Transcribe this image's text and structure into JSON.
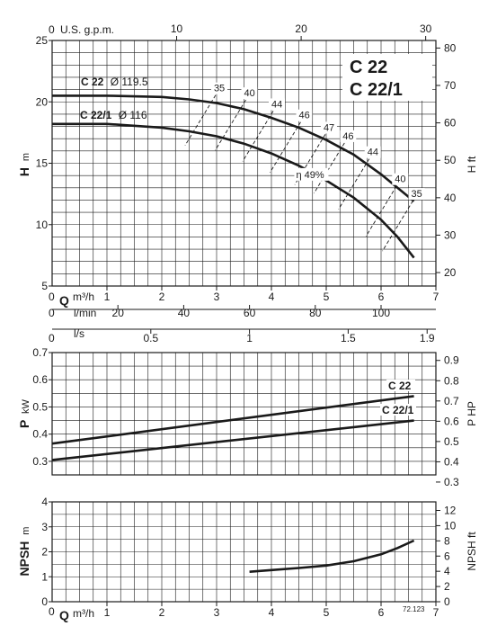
{
  "chart_data": [
    {
      "type": "line",
      "name": "head",
      "title": "C 22\nC 22/1",
      "title_lines": [
        "C 22",
        "C 22/1"
      ],
      "ylabel": "H m",
      "ylabel_parts": [
        "H",
        "m"
      ],
      "y2label": "H ft",
      "xlabel": "Q m³/h",
      "xlabel_parts": [
        "Q",
        "m³/h"
      ],
      "xlim": [
        0,
        7
      ],
      "ylim": [
        5,
        25
      ],
      "x_ticks": [
        1,
        2,
        3,
        4,
        5,
        6,
        7
      ],
      "x_ticks_labels": [
        "1",
        "2",
        "3",
        "4",
        "5",
        "6",
        "7"
      ],
      "x_zero_label": "0",
      "y_ticks": [
        5,
        10,
        15,
        20,
        25
      ],
      "y_ticks_labels": [
        "5",
        "10",
        "15",
        "20",
        "25"
      ],
      "y2_ticks": [
        20,
        30,
        40,
        50,
        60,
        70,
        80
      ],
      "y2_ticks_labels": [
        "20",
        "30",
        "40",
        "50",
        "60",
        "70",
        "80"
      ],
      "top_axis": {
        "label": "U.S. g.p.m.",
        "zero_label": "0",
        "ticks": [
          10,
          20,
          30
        ],
        "ticks_labels": [
          "10",
          "20",
          "30"
        ]
      },
      "lmin_axis": {
        "label": "l/min",
        "zero_label": "0",
        "ticks": [
          20,
          40,
          60,
          80,
          100
        ],
        "ticks_labels": [
          "20",
          "40",
          "60",
          "80",
          "100"
        ]
      },
      "ls_axis": {
        "label": "l/s",
        "zero_label": "0",
        "ticks": [
          0.5,
          1,
          1.5,
          1.9
        ],
        "ticks_labels": [
          "0.5",
          "1",
          "1.5",
          "1.9"
        ]
      },
      "grid": true,
      "series": [
        {
          "name": "C 22",
          "diameter_label": "Ø 119.5",
          "x": [
            0,
            1,
            2,
            2.5,
            3,
            3.5,
            4,
            4.5,
            5,
            5.5,
            6,
            6.3,
            6.6
          ],
          "y": [
            20.5,
            20.5,
            20.4,
            20.2,
            19.9,
            19.4,
            18.7,
            17.9,
            16.9,
            15.7,
            14.1,
            13.0,
            11.9
          ]
        },
        {
          "name": "C 22/1",
          "diameter_label": "Ø 116",
          "x": [
            0,
            1,
            2,
            2.5,
            3,
            3.5,
            4,
            4.5,
            5,
            5.5,
            6,
            6.3,
            6.6
          ],
          "y": [
            18.2,
            18.2,
            17.9,
            17.6,
            17.2,
            16.6,
            15.8,
            14.8,
            13.6,
            12.2,
            10.4,
            9.0,
            7.3
          ]
        }
      ],
      "efficiency_lines": [
        {
          "label": "35",
          "x": 2.95,
          "y": 20.7
        },
        {
          "label": "40",
          "x": 3.5,
          "y": 20.3
        },
        {
          "label": "44",
          "x": 4.0,
          "y": 19.4
        },
        {
          "label": "46",
          "x": 4.5,
          "y": 18.5
        },
        {
          "label": "47",
          "x": 4.95,
          "y": 17.5
        },
        {
          "label": "46",
          "x": 5.3,
          "y": 16.8
        },
        {
          "label": "44",
          "x": 5.75,
          "y": 15.5
        },
        {
          "label": "40",
          "x": 6.25,
          "y": 13.3
        },
        {
          "label": "35",
          "x": 6.55,
          "y": 12.1
        },
        {
          "label": "η 49%",
          "x": 4.45,
          "y": 13.8
        }
      ]
    },
    {
      "type": "line",
      "name": "power",
      "ylabel": "P kW",
      "ylabel_parts": [
        "P",
        "kW"
      ],
      "y2label": "P HP",
      "xlim": [
        0,
        7
      ],
      "ylim": [
        0.25,
        0.7
      ],
      "y_ticks": [
        0.3,
        0.4,
        0.5,
        0.6,
        0.7
      ],
      "y_ticks_labels": [
        "0.3",
        "0.4",
        "0.5",
        "0.6",
        "0.7"
      ],
      "y2_ticks": [
        0.3,
        0.4,
        0.5,
        0.6,
        0.7,
        0.8,
        0.9
      ],
      "y2_ticks_labels": [
        "0.3",
        "0.4",
        "0.5",
        "0.6",
        "0.7",
        "0.8",
        "0.9"
      ],
      "grid": true,
      "series": [
        {
          "name": "C 22",
          "x": [
            0,
            6.6
          ],
          "y": [
            0.365,
            0.54
          ]
        },
        {
          "name": "C 22/1",
          "x": [
            0,
            6.6
          ],
          "y": [
            0.305,
            0.45
          ]
        }
      ]
    },
    {
      "type": "line",
      "name": "npsh",
      "ylabel": "NPSH m",
      "ylabel_parts": [
        "NPSH",
        "m"
      ],
      "y2label": "NPSH ft",
      "xlabel": "Q m³/h",
      "xlabel_parts": [
        "Q",
        "m³/h"
      ],
      "xlim": [
        0,
        7
      ],
      "ylim": [
        0,
        4
      ],
      "x_ticks": [
        1,
        2,
        3,
        4,
        5,
        6,
        7
      ],
      "x_ticks_labels": [
        "1",
        "2",
        "3",
        "4",
        "5",
        "6",
        "7"
      ],
      "x_zero_label": "0",
      "y_ticks": [
        0,
        1,
        2,
        3,
        4
      ],
      "y_ticks_labels": [
        "0",
        "1",
        "2",
        "3",
        "4"
      ],
      "y2_ticks": [
        0,
        2,
        4,
        6,
        8,
        10,
        12
      ],
      "y2_ticks_labels": [
        "0",
        "2",
        "4",
        "6",
        "8",
        "10",
        "12"
      ],
      "grid": true,
      "series": [
        {
          "name": "NPSH",
          "x": [
            3.6,
            4.0,
            4.5,
            5.0,
            5.5,
            6.0,
            6.3,
            6.6
          ],
          "y": [
            1.2,
            1.27,
            1.35,
            1.45,
            1.62,
            1.9,
            2.15,
            2.45
          ]
        }
      ],
      "code": "72.123"
    }
  ]
}
